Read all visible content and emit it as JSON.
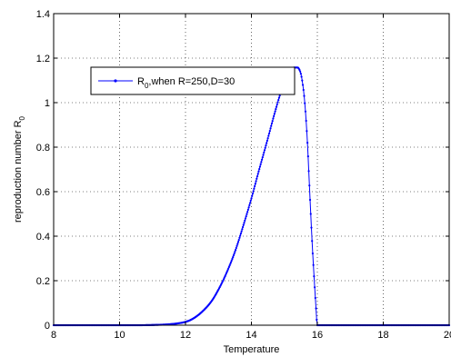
{
  "chart_data": {
    "type": "line",
    "title": "",
    "xlabel": "Temperature",
    "ylabel": "reproduction number R",
    "ylabel_subscript": "0",
    "xlim": [
      8,
      20
    ],
    "ylim": [
      0,
      1.4
    ],
    "x_ticks": [
      8,
      10,
      12,
      14,
      16,
      18,
      20
    ],
    "y_ticks": [
      0,
      0.2,
      0.4,
      0.6,
      0.8,
      1,
      1.2,
      1.4
    ],
    "x_tick_labels": [
      "8",
      "10",
      "12",
      "14",
      "16",
      "18",
      "20"
    ],
    "y_tick_labels": [
      "0",
      "0.2",
      "0.4",
      "0.6",
      "0.8",
      "1",
      "1.2",
      "1.4"
    ],
    "grid": true,
    "legend_position": "top-left",
    "series": [
      {
        "name": "R0,when R=250,D=30",
        "legend_main": "R",
        "legend_sub": "0",
        "legend_rest": ",when R=250,D=30",
        "color": "#0000ff",
        "marker": "dot",
        "x": [
          8,
          9,
          10,
          10.5,
          11,
          11.5,
          11.8,
          12,
          12.2,
          12.5,
          12.8,
          13,
          13.2,
          13.5,
          13.8,
          14,
          14.2,
          14.5,
          14.7,
          14.9,
          15,
          15.1,
          15.2,
          15.3,
          15.4,
          15.45,
          15.5,
          15.55,
          15.6,
          15.65,
          15.7,
          15.75,
          15.8,
          15.85,
          15.9,
          15.95,
          16,
          17,
          18,
          19,
          20
        ],
        "y": [
          0,
          0,
          0,
          0,
          0.001,
          0.004,
          0.009,
          0.015,
          0.027,
          0.06,
          0.11,
          0.16,
          0.22,
          0.33,
          0.47,
          0.57,
          0.68,
          0.84,
          0.95,
          1.05,
          1.09,
          1.12,
          1.145,
          1.158,
          1.158,
          1.15,
          1.13,
          1.09,
          1.03,
          0.94,
          0.82,
          0.66,
          0.5,
          0.35,
          0.22,
          0.1,
          0,
          0,
          0,
          0,
          0
        ]
      }
    ]
  }
}
